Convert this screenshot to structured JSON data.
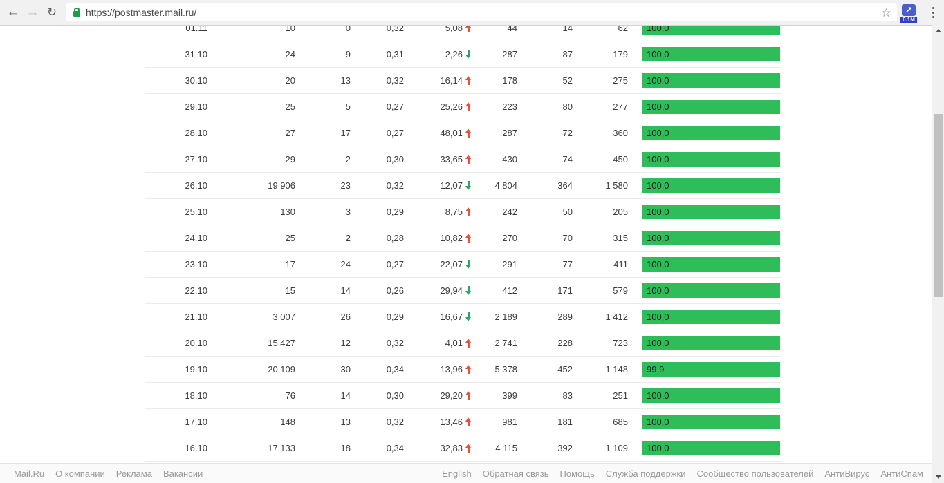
{
  "browser": {
    "url": "https://postmaster.mail.ru/",
    "extension_badge": "0.1M"
  },
  "colors": {
    "bar_green": "#2ebd59",
    "trend_up": "#e8503a",
    "trend_down": "#27a85c"
  },
  "table": {
    "rows": [
      {
        "date": "01.11",
        "v1": "10",
        "v2": "0",
        "v3": "0,32",
        "pct": "5,08",
        "trend": "up",
        "v4": "44",
        "v5": "14",
        "v6": "62",
        "bar": "100,0",
        "bar_pct": 100
      },
      {
        "date": "31.10",
        "v1": "24",
        "v2": "9",
        "v3": "0,31",
        "pct": "2,26",
        "trend": "down",
        "v4": "287",
        "v5": "87",
        "v6": "179",
        "bar": "100,0",
        "bar_pct": 100
      },
      {
        "date": "30.10",
        "v1": "20",
        "v2": "13",
        "v3": "0,32",
        "pct": "16,14",
        "trend": "up",
        "v4": "178",
        "v5": "52",
        "v6": "275",
        "bar": "100,0",
        "bar_pct": 100
      },
      {
        "date": "29.10",
        "v1": "25",
        "v2": "5",
        "v3": "0,27",
        "pct": "25,26",
        "trend": "up",
        "v4": "223",
        "v5": "80",
        "v6": "277",
        "bar": "100,0",
        "bar_pct": 100
      },
      {
        "date": "28.10",
        "v1": "27",
        "v2": "17",
        "v3": "0,27",
        "pct": "48,01",
        "trend": "up",
        "v4": "287",
        "v5": "72",
        "v6": "360",
        "bar": "100,0",
        "bar_pct": 100
      },
      {
        "date": "27.10",
        "v1": "29",
        "v2": "2",
        "v3": "0,30",
        "pct": "33,65",
        "trend": "up",
        "v4": "430",
        "v5": "74",
        "v6": "450",
        "bar": "100,0",
        "bar_pct": 100
      },
      {
        "date": "26.10",
        "v1": "19 906",
        "v2": "23",
        "v3": "0,32",
        "pct": "12,07",
        "trend": "down",
        "v4": "4 804",
        "v5": "364",
        "v6": "1 580",
        "bar": "100,0",
        "bar_pct": 100
      },
      {
        "date": "25.10",
        "v1": "130",
        "v2": "3",
        "v3": "0,29",
        "pct": "8,75",
        "trend": "up",
        "v4": "242",
        "v5": "50",
        "v6": "205",
        "bar": "100,0",
        "bar_pct": 100
      },
      {
        "date": "24.10",
        "v1": "25",
        "v2": "2",
        "v3": "0,28",
        "pct": "10,82",
        "trend": "up",
        "v4": "270",
        "v5": "70",
        "v6": "315",
        "bar": "100,0",
        "bar_pct": 100
      },
      {
        "date": "23.10",
        "v1": "17",
        "v2": "24",
        "v3": "0,27",
        "pct": "22,07",
        "trend": "down",
        "v4": "291",
        "v5": "77",
        "v6": "411",
        "bar": "100,0",
        "bar_pct": 100
      },
      {
        "date": "22.10",
        "v1": "15",
        "v2": "14",
        "v3": "0,26",
        "pct": "29,94",
        "trend": "down",
        "v4": "412",
        "v5": "171",
        "v6": "579",
        "bar": "100,0",
        "bar_pct": 100
      },
      {
        "date": "21.10",
        "v1": "3 007",
        "v2": "26",
        "v3": "0,29",
        "pct": "16,67",
        "trend": "down",
        "v4": "2 189",
        "v5": "289",
        "v6": "1 412",
        "bar": "100,0",
        "bar_pct": 100
      },
      {
        "date": "20.10",
        "v1": "15 427",
        "v2": "12",
        "v3": "0,32",
        "pct": "4,01",
        "trend": "up",
        "v4": "2 741",
        "v5": "228",
        "v6": "723",
        "bar": "100,0",
        "bar_pct": 100
      },
      {
        "date": "19.10",
        "v1": "20 109",
        "v2": "30",
        "v3": "0,34",
        "pct": "13,96",
        "trend": "up",
        "v4": "5 378",
        "v5": "452",
        "v6": "1 148",
        "bar": "99,9",
        "bar_pct": 99.9
      },
      {
        "date": "18.10",
        "v1": "76",
        "v2": "14",
        "v3": "0,30",
        "pct": "29,20",
        "trend": "up",
        "v4": "399",
        "v5": "83",
        "v6": "251",
        "bar": "100,0",
        "bar_pct": 100
      },
      {
        "date": "17.10",
        "v1": "148",
        "v2": "13",
        "v3": "0,32",
        "pct": "13,46",
        "trend": "up",
        "v4": "981",
        "v5": "181",
        "v6": "685",
        "bar": "100,0",
        "bar_pct": 100
      },
      {
        "date": "16.10",
        "v1": "17 133",
        "v2": "18",
        "v3": "0,34",
        "pct": "32,83",
        "trend": "up",
        "v4": "4 115",
        "v5": "392",
        "v6": "1 109",
        "bar": "100,0",
        "bar_pct": 100
      }
    ]
  },
  "footer": {
    "left_links": [
      "Mail.Ru",
      "О компании",
      "Реклама",
      "Вакансии"
    ],
    "right_links": [
      "English",
      "Обратная связь",
      "Помощь",
      "Служба поддержки",
      "Сообщество пользователей",
      "АнтиВирус",
      "АнтиСпам"
    ]
  },
  "glyphs": {
    "back": "←",
    "forward": "→",
    "reload": "↻",
    "star": "☆",
    "ext_arrow": "↗"
  }
}
